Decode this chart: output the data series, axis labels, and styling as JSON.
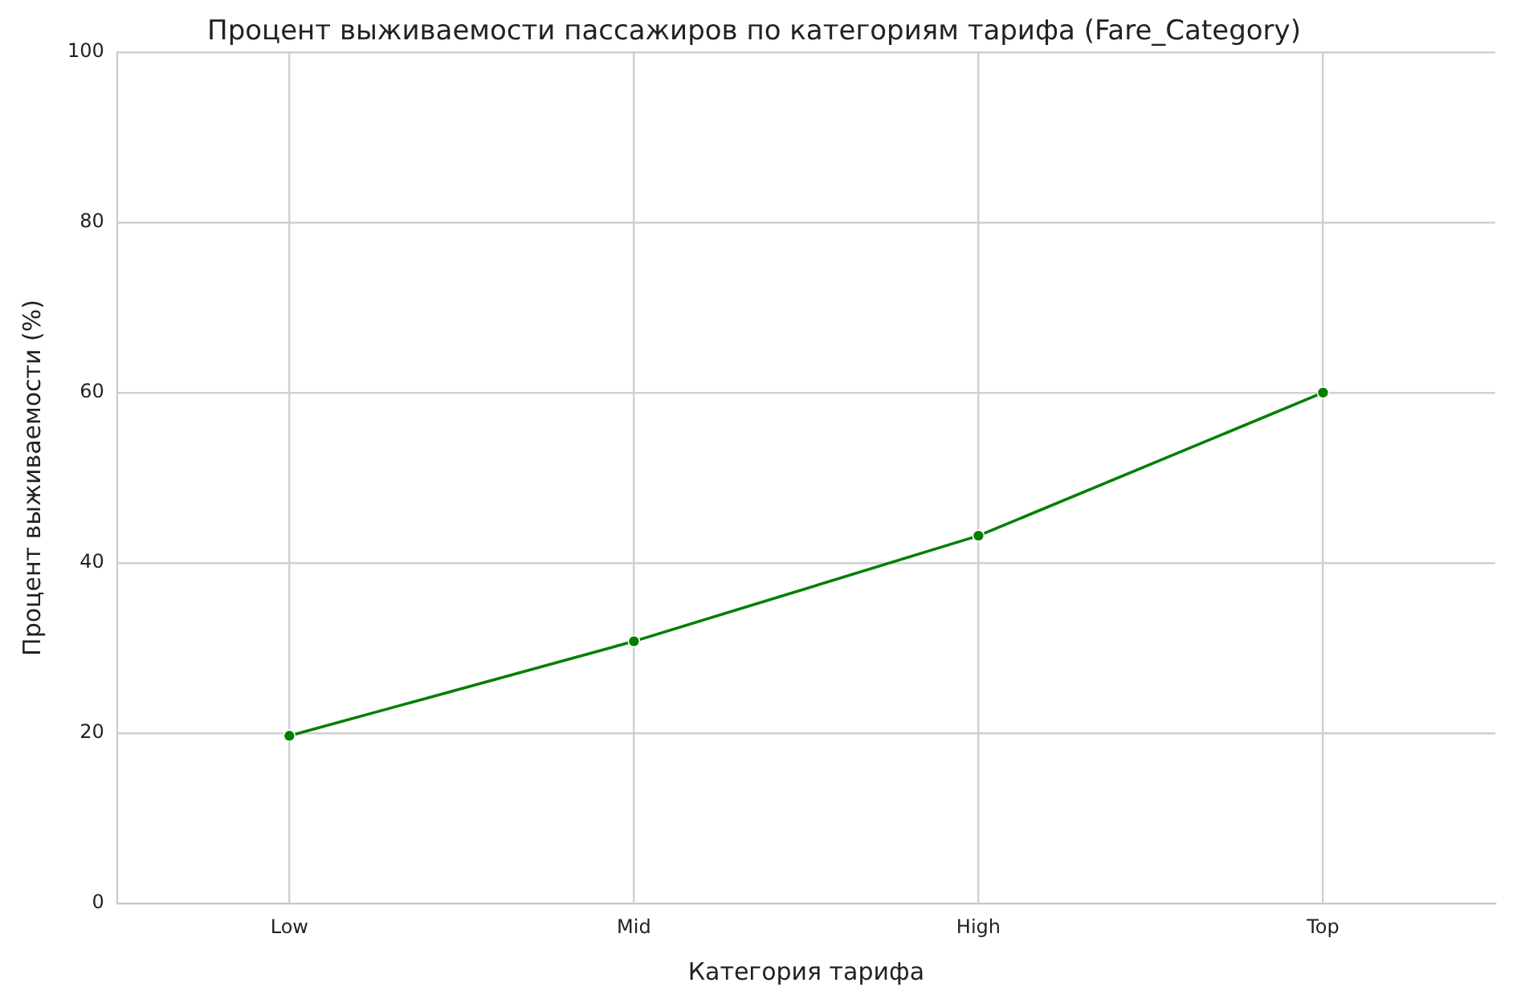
{
  "chart_data": {
    "type": "line",
    "title": "Процент выживаемости пассажиров по категориям тарифа (Fare_Category)",
    "xlabel": "Категория тарифа",
    "ylabel": "Процент выживаемости (%)",
    "categories": [
      "Low",
      "Mid",
      "High",
      "Top"
    ],
    "series": [
      {
        "color": "#008000",
        "values": [
          19.7,
          30.8,
          43.2,
          60.0
        ]
      }
    ],
    "ylim": [
      0,
      100
    ],
    "yticks": [
      0,
      20,
      40,
      60,
      80,
      100
    ],
    "grid": true,
    "marker": "circle",
    "line_style": "solid",
    "legend": false
  }
}
